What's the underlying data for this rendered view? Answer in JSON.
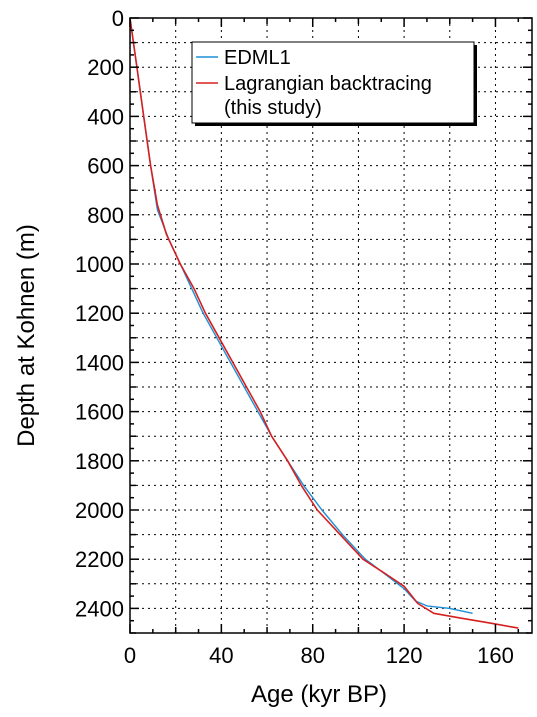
{
  "chart_data": {
    "type": "line",
    "xlabel": "Age (kyr BP)",
    "ylabel": "Depth at Kohnen (m)",
    "xlim": [
      0,
      176
    ],
    "ylim": [
      2500,
      0
    ],
    "y_inverted": true,
    "grid": true,
    "legend_position": "top-right",
    "x_ticks": [
      0,
      40,
      80,
      120,
      160
    ],
    "y_ticks": [
      0,
      200,
      400,
      600,
      800,
      1000,
      1200,
      1400,
      1600,
      1800,
      2000,
      2200,
      2400
    ],
    "series": [
      {
        "name": "EDML1",
        "color": "#1f8fd6",
        "points": [
          [
            0,
            0
          ],
          [
            3,
            200
          ],
          [
            6,
            400
          ],
          [
            9,
            600
          ],
          [
            12,
            780
          ],
          [
            17,
            900
          ],
          [
            22,
            1000
          ],
          [
            27,
            1100
          ],
          [
            32,
            1200
          ],
          [
            38,
            1300
          ],
          [
            44,
            1400
          ],
          [
            50,
            1500
          ],
          [
            56,
            1600
          ],
          [
            62,
            1700
          ],
          [
            69,
            1800
          ],
          [
            76,
            1900
          ],
          [
            84,
            2000
          ],
          [
            93,
            2100
          ],
          [
            103,
            2200
          ],
          [
            113,
            2270
          ],
          [
            120,
            2320
          ],
          [
            125,
            2370
          ],
          [
            130,
            2390
          ],
          [
            140,
            2400
          ],
          [
            150,
            2420
          ]
        ]
      },
      {
        "name": "Lagrangian backtracing\n(this study)",
        "color": "#d62020",
        "points": [
          [
            0,
            0
          ],
          [
            3,
            200
          ],
          [
            6,
            400
          ],
          [
            9,
            600
          ],
          [
            12,
            760
          ],
          [
            16,
            880
          ],
          [
            22,
            1000
          ],
          [
            28,
            1100
          ],
          [
            33,
            1200
          ],
          [
            39,
            1300
          ],
          [
            45,
            1400
          ],
          [
            51,
            1500
          ],
          [
            57,
            1600
          ],
          [
            62,
            1700
          ],
          [
            69,
            1800
          ],
          [
            75,
            1900
          ],
          [
            82,
            2000
          ],
          [
            92,
            2100
          ],
          [
            102,
            2200
          ],
          [
            112,
            2260
          ],
          [
            120,
            2310
          ],
          [
            126,
            2380
          ],
          [
            133,
            2420
          ],
          [
            145,
            2440
          ],
          [
            158,
            2460
          ],
          [
            170,
            2480
          ]
        ]
      }
    ],
    "legend": [
      "EDML1",
      "Lagrangian backtracing",
      "(this study)"
    ]
  }
}
